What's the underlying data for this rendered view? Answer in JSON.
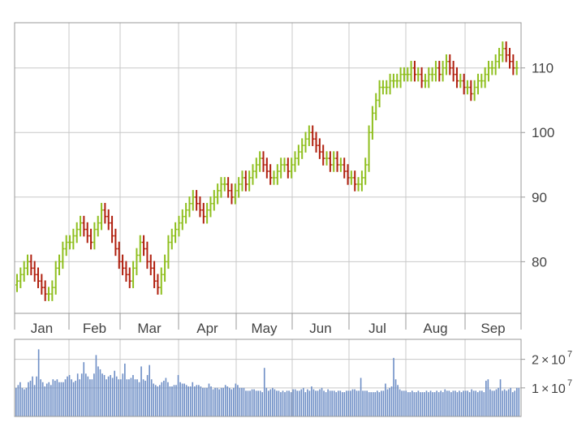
{
  "chart_data": {
    "type": "ohlc",
    "title": "",
    "xlabel": "",
    "ylabel": "",
    "grid": true,
    "colors": {
      "up": "#8fbf1f",
      "down": "#b0200f",
      "volume": "#6f8fc6",
      "grid": "#c8c8c8",
      "frame": "#999999",
      "tick_text": "#444444"
    },
    "price_panel": {
      "ylim": [
        72,
        117
      ],
      "yticks": [
        80,
        90,
        100,
        110
      ],
      "ytick_labels": [
        "80",
        "90",
        "100",
        "110"
      ]
    },
    "months": [
      "Jan",
      "Feb",
      "Mar",
      "Apr",
      "May",
      "Jun",
      "Jul",
      "Aug",
      "Sep"
    ],
    "price_series": {
      "name": "",
      "x_start_day": 0,
      "x_step_days": 1.44,
      "close": [
        77,
        78,
        79,
        80,
        79,
        78,
        77,
        76,
        75,
        75,
        76,
        79,
        80,
        82,
        83,
        83,
        84,
        85,
        86,
        85,
        84,
        83,
        85,
        86,
        88,
        87,
        86,
        84,
        82,
        80,
        79,
        78,
        77,
        79,
        81,
        83,
        82,
        80,
        79,
        77,
        76,
        78,
        80,
        83,
        84,
        85,
        86,
        87,
        88,
        89,
        90,
        89,
        88,
        87,
        88,
        89,
        90,
        91,
        92,
        92,
        91,
        90,
        91,
        92,
        93,
        92,
        93,
        94,
        95,
        96,
        95,
        94,
        93,
        93,
        94,
        95,
        95,
        94,
        95,
        96,
        97,
        98,
        99,
        100,
        99,
        98,
        97,
        96,
        96,
        95,
        96,
        95,
        95,
        94,
        93,
        93,
        92,
        92,
        93,
        95,
        100,
        103,
        105,
        107,
        107,
        107,
        108,
        108,
        108,
        109,
        109,
        109,
        110,
        109,
        109,
        108,
        108,
        109,
        109,
        110,
        109,
        110,
        111,
        110,
        109,
        108,
        108,
        107,
        107,
        106,
        107,
        108,
        108,
        109,
        110,
        110,
        111,
        112,
        113,
        112,
        111,
        110,
        110
      ]
    },
    "volume_panel": {
      "ylim": [
        0,
        27000000
      ],
      "yticks": [
        10000000,
        20000000
      ],
      "ytick_labels": [
        {
          "mantissa": "1",
          "exponent": "7"
        },
        {
          "mantissa": "2",
          "exponent": "7"
        }
      ],
      "tick_times": "×",
      "tick_base": "10",
      "values": [
        10000000,
        11000000,
        12000000,
        10000000,
        9500000,
        10000000,
        12000000,
        12500000,
        14000000,
        11000000,
        14000000,
        23500000,
        13000000,
        12000000,
        10500000,
        11500000,
        12000000,
        11000000,
        13000000,
        12500000,
        13000000,
        12000000,
        12000000,
        12000000,
        13000000,
        14000000,
        14500000,
        13000000,
        12000000,
        12500000,
        15000000,
        13000000,
        15000000,
        19000000,
        15000000,
        14000000,
        13000000,
        13000000,
        15000000,
        21500000,
        17500000,
        16500000,
        15000000,
        14500000,
        13000000,
        14000000,
        14500000,
        13500000,
        16000000,
        14000000,
        13000000,
        13000000,
        15000000,
        18500000,
        13000000,
        13000000,
        13500000,
        14500000,
        13000000,
        13000000,
        12000000,
        17500000,
        13000000,
        12500000,
        14500000,
        18000000,
        13000000,
        11500000,
        11000000,
        10500000,
        11000000,
        12000000,
        12500000,
        13500000,
        12000000,
        10500000,
        10500000,
        11000000,
        11000000,
        14500000,
        12000000,
        11500000,
        11500000,
        11000000,
        10500000,
        10500000,
        12000000,
        10500000,
        11000000,
        11000000,
        10500000,
        10000000,
        10000000,
        10000000,
        11500000,
        10500000,
        9500000,
        10000000,
        10000000,
        9500000,
        10000000,
        10000000,
        11000000,
        10500000,
        10000000,
        9500000,
        10000000,
        11500000,
        11000000,
        10000000,
        10000000,
        10000000,
        9000000,
        9000000,
        9000000,
        9500000,
        9500000,
        9000000,
        9000000,
        9000000,
        8500000,
        17000000,
        10000000,
        9000000,
        9500000,
        10000000,
        9500000,
        9000000,
        9000000,
        8500000,
        9000000,
        8500000,
        9000000,
        9000000,
        8500000,
        9500000,
        9500000,
        9000000,
        9000000,
        9500000,
        10000000,
        8500000,
        9500000,
        9000000,
        10500000,
        9500000,
        9000000,
        9000000,
        9500000,
        10000000,
        9000000,
        8500000,
        9500000,
        9000000,
        9000000,
        9000000,
        8500000,
        9000000,
        9000000,
        8500000,
        8500000,
        9000000,
        9000000,
        9000000,
        9500000,
        9500000,
        9000000,
        9000000,
        13500000,
        9000000,
        9000000,
        9000000,
        8500000,
        8500000,
        8500000,
        8500000,
        9000000,
        8500000,
        9000000,
        9000000,
        11500000,
        9500000,
        10000000,
        10500000,
        20500000,
        13000000,
        11000000,
        9500000,
        9000000,
        9000000,
        9000000,
        8500000,
        8500000,
        9000000,
        8500000,
        8500000,
        9000000,
        8500000,
        8500000,
        8500000,
        9000000,
        8500000,
        9000000,
        8500000,
        8500000,
        9000000,
        8500000,
        9000000,
        8500000,
        9500000,
        9000000,
        9000000,
        8500000,
        9000000,
        9000000,
        8500000,
        9000000,
        8500000,
        9000000,
        9000000,
        9000000,
        8500000,
        9500000,
        9000000,
        9000000,
        8500000,
        9000000,
        9000000,
        8500000,
        12500000,
        13000000,
        9500000,
        9000000,
        9000000,
        9500000,
        10000000,
        13000000,
        9000000,
        9500000,
        9000000,
        9500000,
        10000000,
        8500000,
        9000000,
        10000000,
        10000000
      ]
    }
  }
}
